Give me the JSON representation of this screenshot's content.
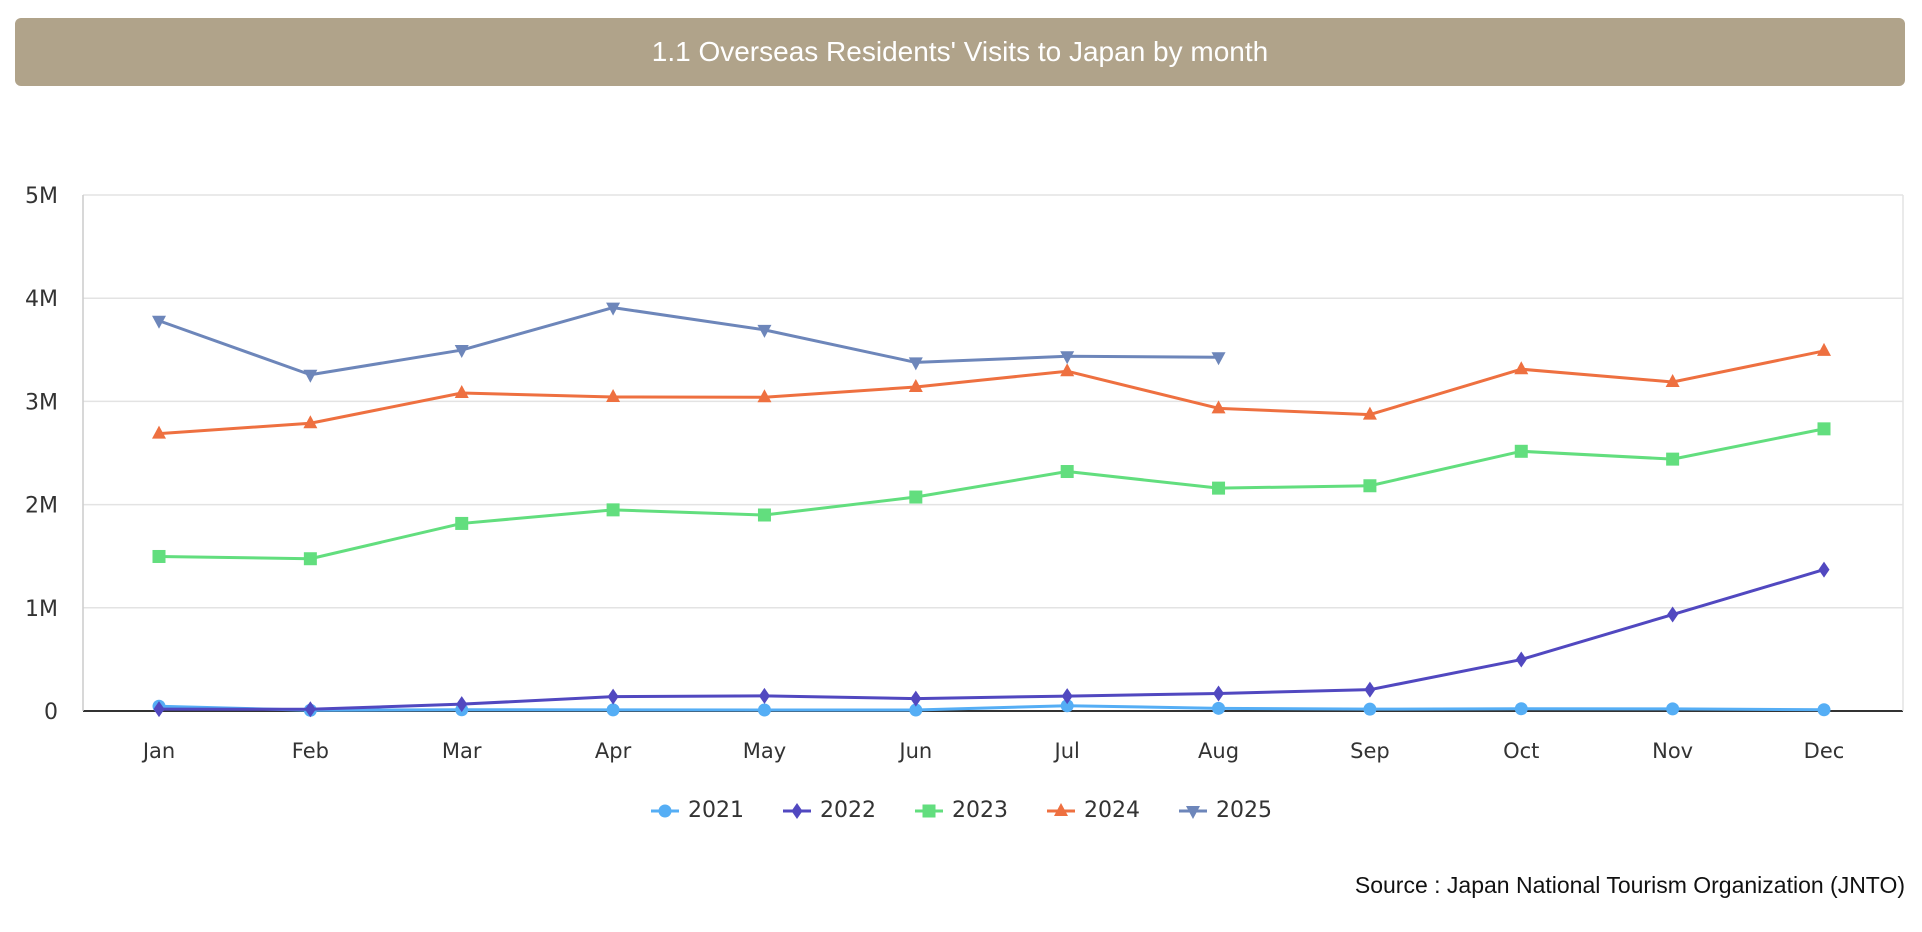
{
  "chart_data": {
    "type": "line",
    "title": "1.1 Overseas Residents' Visits to Japan by month",
    "categories": [
      "Jan",
      "Feb",
      "Mar",
      "Apr",
      "May",
      "Jun",
      "Jul",
      "Aug",
      "Sep",
      "Oct",
      "Nov",
      "Dec"
    ],
    "ylim": [
      0,
      5000000
    ],
    "yticks": [
      0,
      1000000,
      2000000,
      3000000,
      4000000,
      5000000
    ],
    "ytick_labels": [
      "0",
      "1M",
      "2M",
      "3M",
      "4M",
      "5M"
    ],
    "grid": true,
    "legend_position": "bottom",
    "series": [
      {
        "name": "2021",
        "color": "#55aef5",
        "marker": "circle",
        "values": [
          46500,
          7400,
          12300,
          10900,
          10000,
          9300,
          51100,
          25900,
          17700,
          22100,
          20700,
          12100
        ]
      },
      {
        "name": "2022",
        "color": "#5148c0",
        "marker": "diamond",
        "values": [
          17800,
          16700,
          66100,
          139500,
          147000,
          120400,
          144600,
          169900,
          206600,
          498600,
          934500,
          1370000
        ]
      },
      {
        "name": "2023",
        "color": "#62de7e",
        "marker": "square",
        "values": [
          1497300,
          1475500,
          1817500,
          1949100,
          1899200,
          2073300,
          2320600,
          2159600,
          2182600,
          2516500,
          2440600,
          2734000
        ]
      },
      {
        "name": "2024",
        "color": "#ee7040",
        "marker": "triangle-up",
        "values": [
          2688100,
          2788000,
          3081600,
          3042900,
          3040000,
          3140000,
          3292500,
          2933000,
          2872200,
          3312000,
          3188000,
          3489000
        ]
      },
      {
        "name": "2025",
        "color": "#6d86ba",
        "marker": "triangle-down",
        "values": [
          3781600,
          3258100,
          3497600,
          3908900,
          3693300,
          3377800,
          3437000,
          3428000,
          null,
          null,
          null,
          null
        ]
      }
    ]
  },
  "source": "Source : Japan National Tourism Organization (JNTO)"
}
